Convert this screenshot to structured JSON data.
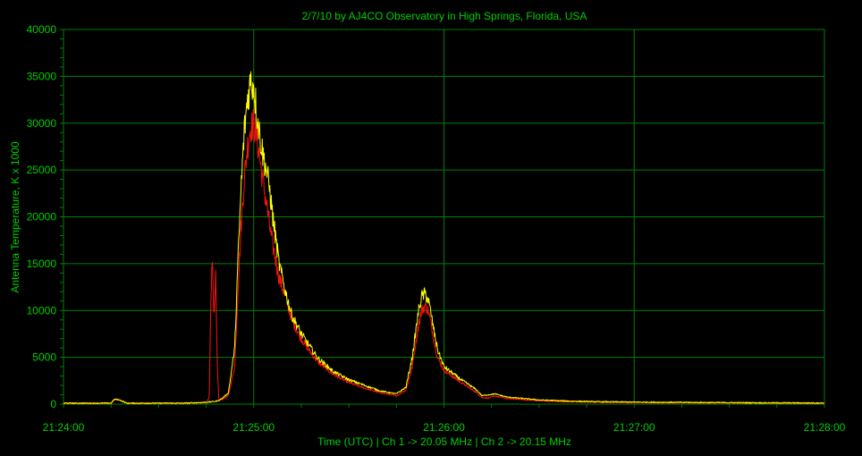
{
  "chart_data": {
    "type": "line",
    "title": "2/7/10  by  AJ4CO Observatory  in  High Springs, Florida, USA",
    "xlabel": "Time (UTC)  |  Ch 1 -> 20.05 MHz  |  Ch 2 -> 20.15 MHz",
    "ylabel": "Antenna Temperature, K x 1000",
    "xlim": [
      0,
      240
    ],
    "ylim": [
      0,
      40000
    ],
    "xticks": [
      {
        "value": 0,
        "label": "21:24:00"
      },
      {
        "value": 60,
        "label": "21:25:00"
      },
      {
        "value": 120,
        "label": "21:26:00"
      },
      {
        "value": 180,
        "label": "21:27:00"
      },
      {
        "value": 240,
        "label": "21:28:00"
      }
    ],
    "yticks": [
      {
        "value": 0,
        "label": "0"
      },
      {
        "value": 5000,
        "label": "5000"
      },
      {
        "value": 10000,
        "label": "10000"
      },
      {
        "value": 15000,
        "label": "15000"
      },
      {
        "value": 20000,
        "label": "20000"
      },
      {
        "value": 25000,
        "label": "25000"
      },
      {
        "value": 30000,
        "label": "30000"
      },
      {
        "value": 35000,
        "label": "35000"
      },
      {
        "value": 40000,
        "label": "40000"
      }
    ],
    "grid": true,
    "colors": {
      "background": "#000000",
      "grid": "#008000",
      "text": "#00d000",
      "ch1": "#ff1010",
      "ch2": "#ffff00"
    },
    "series": [
      {
        "color": "#ff1010",
        "x": [
          0,
          10,
          15,
          16,
          17,
          18,
          20,
          30,
          38,
          42,
          45,
          46,
          46.5,
          47,
          47.5,
          48,
          48.5,
          49,
          50,
          52,
          54,
          55,
          56,
          57,
          58,
          59,
          60,
          61,
          62,
          63,
          64,
          65,
          66,
          68,
          70,
          72,
          75,
          78,
          80,
          85,
          90,
          95,
          100,
          105,
          108,
          110,
          112,
          113,
          114,
          115,
          116,
          117,
          118,
          120,
          125,
          130,
          132,
          134,
          136,
          140,
          150,
          160,
          170,
          180,
          190,
          200,
          210,
          220,
          230,
          240
        ],
        "y": [
          100,
          100,
          100,
          500,
          500,
          400,
          100,
          100,
          100,
          150,
          200,
          700,
          12000,
          15500,
          9000,
          13500,
          4000,
          400,
          500,
          900,
          4000,
          12000,
          19000,
          24000,
          27500,
          29500,
          30000,
          28500,
          26000,
          23500,
          21500,
          19000,
          17000,
          13500,
          11500,
          9000,
          7000,
          5500,
          4600,
          3200,
          2300,
          1700,
          1200,
          900,
          1500,
          4000,
          8500,
          10000,
          10500,
          10000,
          8500,
          6500,
          5000,
          3600,
          2400,
          1300,
          700,
          650,
          850,
          600,
          350,
          250,
          200,
          180,
          160,
          150,
          140,
          130,
          120,
          100
        ]
      },
      {
        "color": "#ffff00",
        "x": [
          0,
          10,
          15,
          16,
          17,
          18,
          20,
          30,
          38,
          42,
          45,
          48,
          49,
          50,
          52,
          54,
          55,
          56,
          57,
          58,
          59,
          60,
          61,
          62,
          63,
          64,
          65,
          66,
          68,
          70,
          72,
          75,
          78,
          80,
          85,
          90,
          95,
          100,
          105,
          108,
          110,
          112,
          113,
          114,
          115,
          116,
          117,
          118,
          120,
          125,
          130,
          132,
          134,
          136,
          140,
          150,
          160,
          170,
          180,
          190,
          200,
          210,
          220,
          230,
          240
        ],
        "y": [
          100,
          100,
          100,
          500,
          500,
          400,
          100,
          100,
          100,
          150,
          200,
          300,
          400,
          600,
          1200,
          6000,
          15000,
          23000,
          29000,
          32500,
          34500,
          34000,
          31000,
          28500,
          26500,
          25000,
          23000,
          20000,
          15000,
          12000,
          9500,
          7500,
          6000,
          5000,
          3500,
          2600,
          2000,
          1400,
          1100,
          1800,
          5000,
          10000,
          11500,
          11800,
          11200,
          9500,
          7500,
          5800,
          4000,
          2700,
          1600,
          900,
          1000,
          1100,
          750,
          450,
          320,
          250,
          220,
          200,
          180,
          160,
          140,
          130,
          120
        ]
      }
    ]
  }
}
